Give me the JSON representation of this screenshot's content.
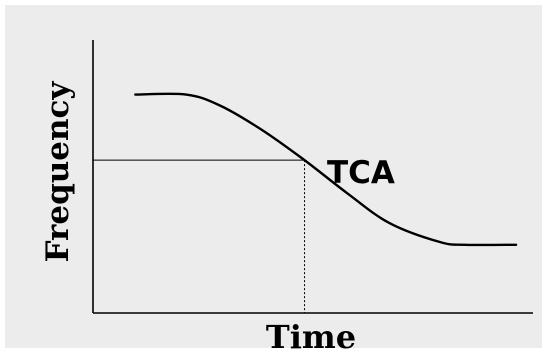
{
  "chart_data": {
    "type": "line",
    "title": "",
    "xlabel": "Time",
    "ylabel": "Frequency",
    "grid": false,
    "legend": "none",
    "series": [
      {
        "name": "TCA",
        "color": "#000000",
        "x": [
          1.0,
          2.2,
          3.0,
          4.0,
          5.0,
          6.0,
          7.0,
          8.2,
          8.8,
          10.0
        ],
        "y": [
          8.0,
          8.0,
          7.6,
          6.7,
          5.6,
          4.4,
          3.3,
          2.6,
          2.5,
          2.5
        ]
      }
    ],
    "series_label": "TCA",
    "reference": {
      "x": 5.0,
      "y": 5.6
    },
    "xlim": [
      0,
      10.4
    ],
    "ylim": [
      0,
      10
    ]
  },
  "colors": {
    "background": "#ececec",
    "axis": "#000000",
    "curve": "#000000",
    "reference": "#000000"
  }
}
